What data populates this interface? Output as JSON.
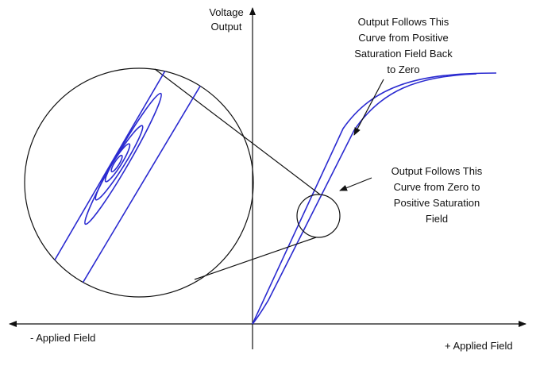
{
  "axis_labels": {
    "y": [
      "Voltage",
      "Output"
    ],
    "x_negative": "- Applied Field",
    "x_positive": "+ Applied Field"
  },
  "annotations": [
    {
      "lines": [
        "Output Follows This",
        "Curve from Positive",
        "Saturation Field Back",
        "to Zero"
      ]
    },
    {
      "lines": [
        "Output Follows This",
        "Curve from Zero to",
        "Positive Saturation",
        "Field"
      ]
    }
  ]
}
